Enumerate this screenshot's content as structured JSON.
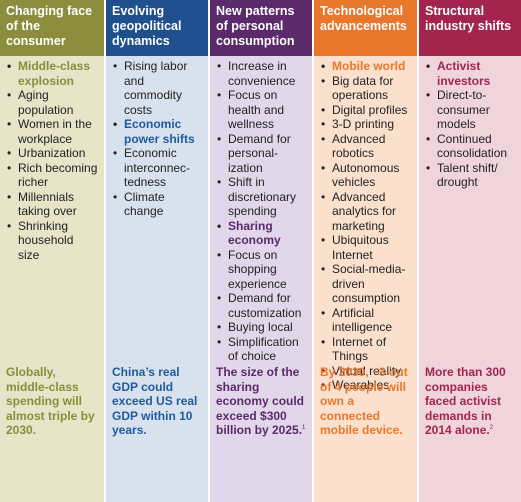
{
  "columns": [
    {
      "title_lines": [
        "Changing face",
        "of the consumer"
      ],
      "header_color": "#8b8d3c",
      "body_color": "#e7e4c8",
      "accent_color": "#8b8d3c",
      "items": [
        {
          "text": "Middle-class explosion",
          "highlight": true
        },
        {
          "text": "Aging population",
          "highlight": false
        },
        {
          "text": "Women in the workplace",
          "highlight": false
        },
        {
          "text": "Urbanization",
          "highlight": false
        },
        {
          "text": "Rich becoming richer",
          "highlight": false
        },
        {
          "text": "Millennials taking over",
          "highlight": false
        },
        {
          "text": "Shrinking household size",
          "highlight": false
        }
      ],
      "footer": "Globally, middle-class spending will almost triple by 2030.",
      "footnote": ""
    },
    {
      "title_lines": [
        "Evolving",
        "geopolitical",
        "dynamics"
      ],
      "header_color": "#1f4f8c",
      "body_color": "#d8e1ee",
      "accent_color": "#1f5a9e",
      "items": [
        {
          "text": "Rising labor and commodity costs",
          "highlight": false
        },
        {
          "text": "Economic power shifts",
          "highlight": true
        },
        {
          "text": "Economic interconnec-tedness",
          "highlight": false
        },
        {
          "text": "Climate change",
          "highlight": false
        }
      ],
      "footer": "China’s real GDP could exceed US real GDP within 10 years.",
      "footnote": ""
    },
    {
      "title_lines": [
        "New patterns",
        "of personal",
        "consumption"
      ],
      "header_color": "#5a2a6b",
      "body_color": "#e2d7ea",
      "accent_color": "#5a2a6b",
      "items": [
        {
          "text": "Increase in convenience",
          "highlight": false
        },
        {
          "text": "Focus on health and wellness",
          "highlight": false
        },
        {
          "text": "Demand for personal-ization",
          "highlight": false
        },
        {
          "text": "Shift in discretionary spending",
          "highlight": false
        },
        {
          "text": "Sharing economy",
          "highlight": true
        },
        {
          "text": "Focus on shopping experience",
          "highlight": false
        },
        {
          "text": "Demand for customization",
          "highlight": false
        },
        {
          "text": "Buying local",
          "highlight": false
        },
        {
          "text": "Simplification of choice",
          "highlight": false
        }
      ],
      "footer": "The size of the sharing economy could exceed $300 billion by 2025.",
      "footnote": "1"
    },
    {
      "title_lines": [
        "Technological",
        "advancements"
      ],
      "header_color": "#e8762b",
      "body_color": "#fbe1cd",
      "accent_color": "#e8762b",
      "items": [
        {
          "text": "Mobile world",
          "highlight": true
        },
        {
          "text": "Big data for operations",
          "highlight": false
        },
        {
          "text": "Digital profiles",
          "highlight": false
        },
        {
          "text": "3-D printing",
          "highlight": false
        },
        {
          "text": "Advanced robotics",
          "highlight": false
        },
        {
          "text": "Autonomous vehicles",
          "highlight": false
        },
        {
          "text": "Advanced analytics for marketing",
          "highlight": false
        },
        {
          "text": "Ubiquitous Internet",
          "highlight": false
        },
        {
          "text": "Social-media-driven consumption",
          "highlight": false
        },
        {
          "text": "Artificial intelligence",
          "highlight": false
        },
        {
          "text": "Internet of Things",
          "highlight": false
        },
        {
          "text": "Virtual reality",
          "highlight": false
        },
        {
          "text": "Wearables",
          "highlight": false
        }
      ],
      "footer": "By 2030, ~3 out of 4 people will own a connected mobile device.",
      "footnote": ""
    },
    {
      "title_lines": [
        "Structural",
        "industry shifts"
      ],
      "header_color": "#a3244d",
      "body_color": "#f0d4dc",
      "accent_color": "#a3244d",
      "items": [
        {
          "text": "Activist investors",
          "highlight": true
        },
        {
          "text": "Direct-to-consumer models",
          "highlight": false
        },
        {
          "text": "Continued consolidation",
          "highlight": false
        },
        {
          "text": "Talent shift/ drought",
          "highlight": false
        }
      ],
      "footer": "More than 300 companies faced activist demands in 2014 alone.",
      "footnote": "2"
    }
  ]
}
